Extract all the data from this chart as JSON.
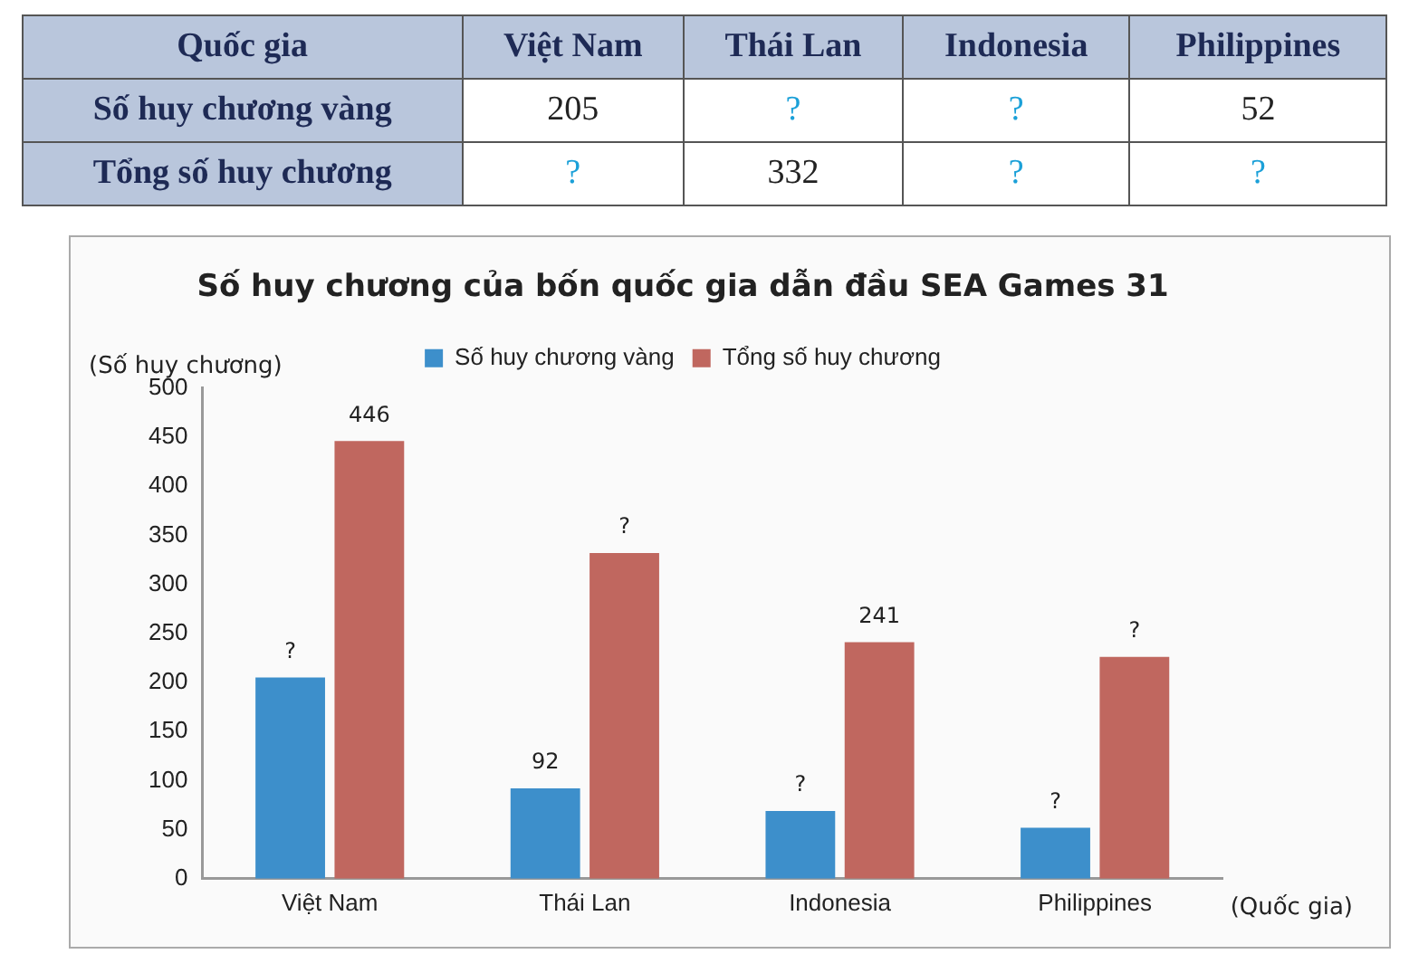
{
  "chart_data": [
    {
      "type": "other",
      "annotations": [
        "Quốc gia"
      ],
      "categories": [
        "Việt Nam",
        "Thái Lan",
        "Indonesia",
        "Philippines"
      ],
      "y_categories": [
        "Số huy chương vàng",
        "Tổng số huy chương"
      ],
      "cell_labels": [
        [
          "205",
          "?",
          "?",
          "52"
        ],
        [
          "?",
          "332",
          "?",
          "?"
        ]
      ]
    },
    {
      "type": "bar",
      "title": "Số huy chương của bốn quốc gia dẫn đầu SEA Games 31",
      "ylabel": "(Số huy chương)",
      "xlabel": "(Quốc gia)",
      "categories": [
        "Việt Nam",
        "Thái Lan",
        "Indonesia",
        "Philippines"
      ],
      "series": [
        {
          "name": "Số huy chương vàng",
          "color": "#3d8fcb",
          "values": [
            205,
            92,
            69,
            52
          ],
          "value_labels": [
            "?",
            "92",
            "?",
            "?"
          ]
        },
        {
          "name": "Tổng số huy chương",
          "color": "#c0675f",
          "values": [
            446,
            332,
            241,
            226
          ],
          "value_labels": [
            "446",
            "?",
            "241",
            "?"
          ]
        }
      ],
      "ylim": [
        0,
        500
      ],
      "yticks": [
        0,
        50,
        100,
        150,
        200,
        250,
        300,
        350,
        400,
        450,
        500
      ],
      "grid": false,
      "legend": "top"
    }
  ]
}
